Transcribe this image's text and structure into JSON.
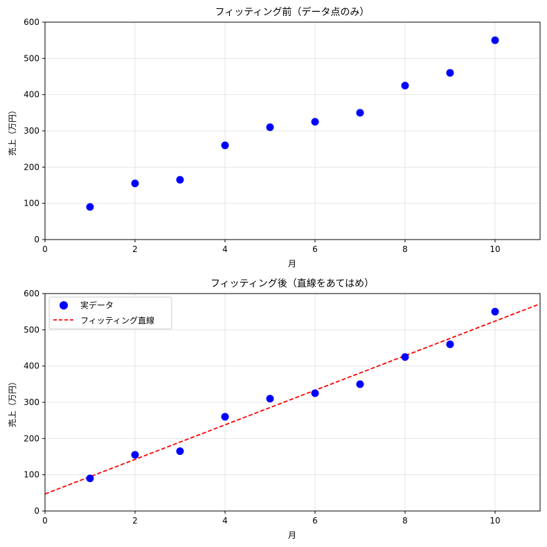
{
  "chart_data": [
    {
      "type": "scatter",
      "title": "フィッティング前（データ点のみ）",
      "xlabel": "月",
      "ylabel": "売上（万円）",
      "xlim": [
        0,
        11
      ],
      "ylim": [
        0,
        600
      ],
      "xticks": [
        0,
        2,
        4,
        6,
        8,
        10
      ],
      "yticks": [
        0,
        100,
        200,
        300,
        400,
        500,
        600
      ],
      "grid": true,
      "colors": {
        "points": "#0000ff"
      },
      "series": [
        {
          "x": [
            1,
            2,
            3,
            4,
            5,
            6,
            7,
            8,
            9,
            10
          ],
          "y": [
            90,
            155,
            165,
            260,
            310,
            325,
            350,
            425,
            460,
            550
          ]
        }
      ]
    },
    {
      "type": "scatter",
      "title": "フィッティング後（直線をあてはめ）",
      "xlabel": "月",
      "ylabel": "売上（万円）",
      "xlim": [
        0,
        11
      ],
      "ylim": [
        0,
        600
      ],
      "xticks": [
        0,
        2,
        4,
        6,
        8,
        10
      ],
      "yticks": [
        0,
        100,
        200,
        300,
        400,
        500,
        600
      ],
      "grid": true,
      "legend": "top-left",
      "colors": {
        "points": "#0000ff",
        "line": "#ff0000"
      },
      "series": [
        {
          "name": "実データ",
          "x": [
            1,
            2,
            3,
            4,
            5,
            6,
            7,
            8,
            9,
            10
          ],
          "y": [
            90,
            155,
            165,
            260,
            310,
            325,
            350,
            425,
            460,
            550
          ]
        }
      ],
      "fit_line": {
        "name": "フィッティング直線",
        "slope": 47.7,
        "intercept": 47.0,
        "x": [
          0,
          11
        ],
        "y": [
          47.0,
          571.7
        ],
        "style": "dashed"
      }
    }
  ]
}
